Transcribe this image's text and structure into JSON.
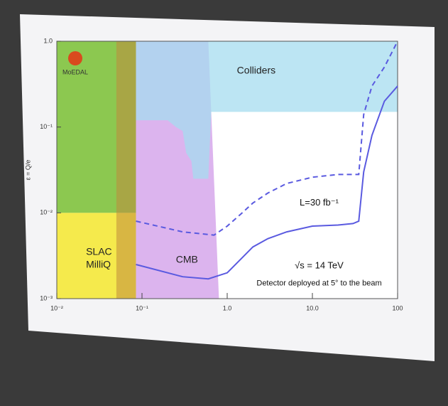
{
  "chart_data": {
    "type": "line",
    "y_label": "ε = Q/e",
    "logo": "MoEDAL",
    "xlim": [
      0.01,
      100
    ],
    "ylim": [
      0.001,
      1
    ],
    "xlog": true,
    "ylog": true,
    "xticks": [
      {
        "value": 0.01,
        "label": "10⁻²"
      },
      {
        "value": 0.1,
        "label": "10⁻¹"
      },
      {
        "value": 1,
        "label": "1.0"
      },
      {
        "value": 10,
        "label": "10.0"
      },
      100
    ],
    "yticks": [
      {
        "value": 0.001,
        "label": "10⁻³"
      },
      {
        "value": 0.01,
        "label": "10⁻²"
      },
      {
        "value": 0.1,
        "label": "10⁻¹"
      },
      {
        "value": 1,
        "label": "1.0"
      }
    ],
    "regions": [
      {
        "color": "#8cc850",
        "x": [
          0.01,
          0.085,
          0.085,
          0.01
        ],
        "y": [
          0.01,
          0.01,
          1,
          1
        ]
      },
      {
        "label": "SLAC MilliQ",
        "color": "#f5ea4c",
        "x": [
          0.01,
          0.085,
          0.085,
          0.01
        ],
        "y": [
          0.001,
          0.001,
          0.01,
          0.01
        ]
      },
      {
        "color": "#c08a3c",
        "x": [
          0.05,
          0.085,
          0.085,
          0.05
        ],
        "y": [
          0.001,
          0.001,
          1,
          1
        ]
      },
      {
        "label": "CMB",
        "color": "#dcb4ee",
        "x": [
          0.085,
          0.8,
          0.6,
          0.085
        ],
        "y": [
          0.001,
          0.001,
          1,
          1
        ]
      },
      {
        "label": "Colliders",
        "color": "#a6dcef",
        "x": [
          0.085,
          100,
          100,
          0.65,
          0.6,
          0.4,
          0.38,
          0.33,
          0.3,
          0.25,
          0.2,
          0.085
        ],
        "y": [
          1,
          1,
          0.15,
          0.15,
          0.025,
          0.025,
          0.04,
          0.05,
          0.09,
          0.1,
          0.12,
          0.12
        ]
      }
    ],
    "series": [
      {
        "color": "#5a5ae0",
        "dashed": false,
        "x": [
          0.085,
          0.3,
          0.6,
          1,
          1.5,
          2,
          3,
          5,
          10,
          20,
          30,
          35,
          40,
          50,
          70,
          100
        ],
        "values": [
          0.0025,
          0.0018,
          0.0017,
          0.002,
          0.003,
          0.004,
          0.005,
          0.006,
          0.007,
          0.0072,
          0.0075,
          0.008,
          0.03,
          0.08,
          0.2,
          0.3
        ]
      },
      {
        "color": "#5a5ae0",
        "dashed": true,
        "x": [
          0.085,
          0.3,
          0.7,
          1,
          1.5,
          2,
          3,
          5,
          10,
          20,
          35,
          40,
          50,
          70,
          100
        ],
        "values": [
          0.008,
          0.006,
          0.0055,
          0.007,
          0.01,
          0.013,
          0.017,
          0.022,
          0.026,
          0.028,
          0.028,
          0.14,
          0.3,
          0.5,
          1
        ]
      }
    ],
    "annotations": [
      "L=30 fb⁻¹",
      "√s = 14 TeV",
      "Detector deployed at 5° to the beam"
    ]
  }
}
